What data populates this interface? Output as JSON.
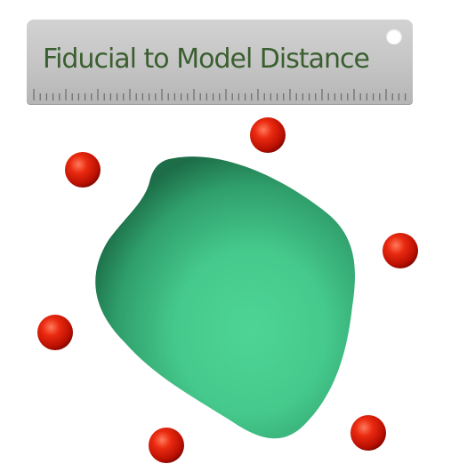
{
  "title": "Fiducial to Model Distance",
  "colors": {
    "model": "#3fba84",
    "fiducial": "#dd1c0a",
    "title_text": "#3a5f2f",
    "ruler": "#c4c4c4"
  },
  "icons": {
    "ruler": "ruler-icon",
    "model": "3d-model-blob",
    "fiducial": "fiducial-sphere"
  }
}
